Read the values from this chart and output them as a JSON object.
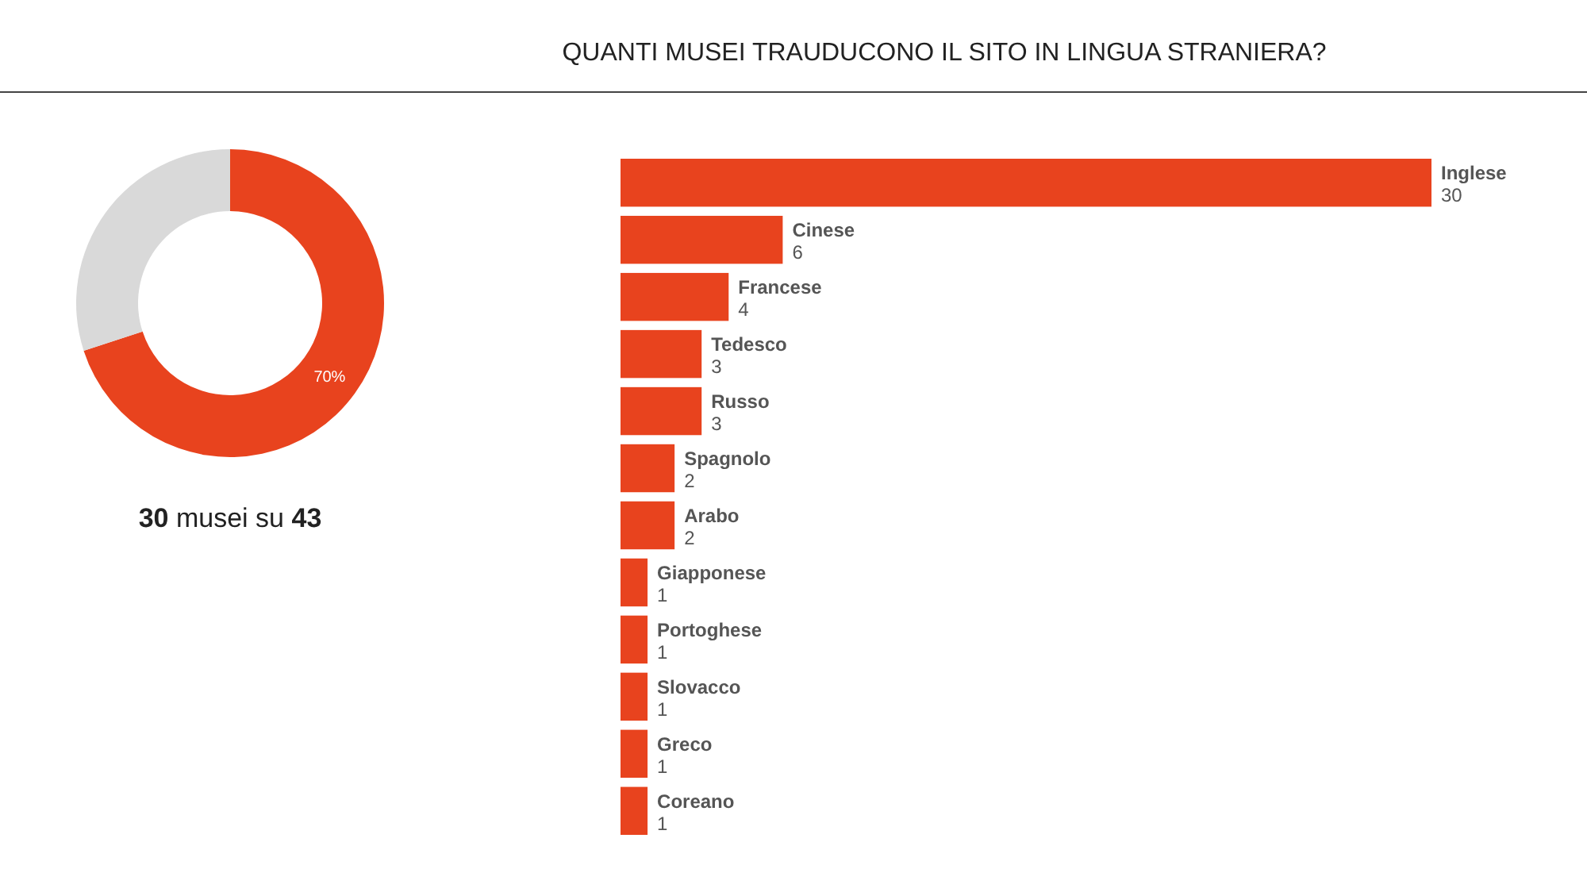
{
  "chart_data": [
    {
      "type": "donut",
      "categories": [
        null,
        null
      ],
      "values": [
        70,
        30
      ],
      "colors": [
        "#e8431e",
        "#d9d9d9"
      ],
      "value_labels": [
        "70%",
        null
      ],
      "annotations": [
        "30 musei su 43"
      ]
    },
    {
      "type": "bar",
      "title": "QUANTI MUSEI TRAUDUCONO IL SITO IN LINGUA STRANIERA?",
      "orientation": "horizontal",
      "categories": [
        "Inglese",
        "Cinese",
        "Francese",
        "Tedesco",
        "Russo",
        "Spagnolo",
        "Arabo",
        "Giapponese",
        "Portoghese",
        "Slovacco",
        "Greco",
        "Coreano"
      ],
      "values": [
        30,
        6,
        4,
        3,
        3,
        2,
        2,
        1,
        1,
        1,
        1,
        1
      ],
      "color": "#e8431e",
      "xlim": [
        0,
        30
      ],
      "data_labels": true
    }
  ]
}
